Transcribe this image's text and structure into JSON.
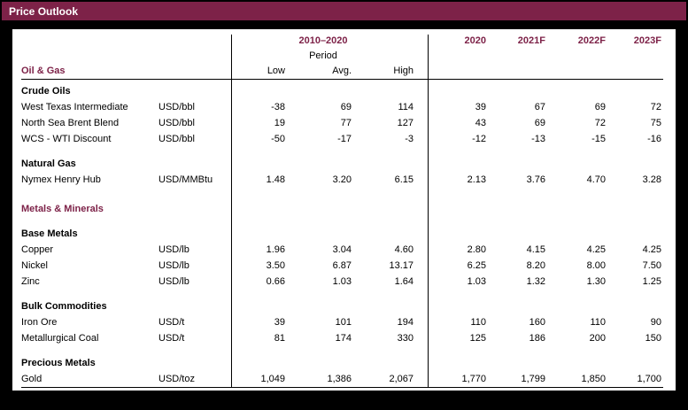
{
  "title_bar": {
    "title": "Price Outlook"
  },
  "colors": {
    "maroon": "#7d2248",
    "text": "#000000",
    "background": "#ffffff",
    "frame": "#000000"
  },
  "table": {
    "header": {
      "period_group": "2010–2020",
      "period_label": "Period",
      "col_low": "Low",
      "col_avg": "Avg.",
      "col_high": "High",
      "years": [
        "2020",
        "2021F",
        "2022F",
        "2023F"
      ],
      "first_section": "Oil & Gas"
    },
    "rows": [
      {
        "type": "section",
        "label": "Crude Oils"
      },
      {
        "type": "data",
        "label": "West Texas Intermediate",
        "unit": "USD/bbl",
        "values": [
          "-38",
          "69",
          "114",
          "39",
          "67",
          "69",
          "72"
        ]
      },
      {
        "type": "data",
        "label": "North Sea Brent Blend",
        "unit": "USD/bbl",
        "values": [
          "19",
          "77",
          "127",
          "43",
          "69",
          "72",
          "75"
        ]
      },
      {
        "type": "data",
        "label": "WCS - WTI Discount",
        "unit": "USD/bbl",
        "values": [
          "-50",
          "-17",
          "-3",
          "-12",
          "-13",
          "-15",
          "-16"
        ]
      },
      {
        "type": "section",
        "label": "Natural Gas"
      },
      {
        "type": "data",
        "label": "Nymex Henry Hub",
        "unit": "USD/MMBtu",
        "values": [
          "1.48",
          "3.20",
          "6.15",
          "2.13",
          "3.76",
          "4.70",
          "3.28"
        ]
      },
      {
        "type": "section-major",
        "label": "Metals & Minerals"
      },
      {
        "type": "section",
        "label": "Base Metals"
      },
      {
        "type": "data",
        "label": "Copper",
        "unit": "USD/lb",
        "values": [
          "1.96",
          "3.04",
          "4.60",
          "2.80",
          "4.15",
          "4.25",
          "4.25"
        ]
      },
      {
        "type": "data",
        "label": "Nickel",
        "unit": "USD/lb",
        "values": [
          "3.50",
          "6.87",
          "13.17",
          "6.25",
          "8.20",
          "8.00",
          "7.50"
        ]
      },
      {
        "type": "data",
        "label": "Zinc",
        "unit": "USD/lb",
        "values": [
          "0.66",
          "1.03",
          "1.64",
          "1.03",
          "1.32",
          "1.30",
          "1.25"
        ]
      },
      {
        "type": "section",
        "label": "Bulk Commodities"
      },
      {
        "type": "data",
        "label": "Iron Ore",
        "unit": "USD/t",
        "values": [
          "39",
          "101",
          "194",
          "110",
          "160",
          "110",
          "90"
        ]
      },
      {
        "type": "data",
        "label": "Metallurgical Coal",
        "unit": "USD/t",
        "values": [
          "81",
          "174",
          "330",
          "125",
          "186",
          "200",
          "150"
        ]
      },
      {
        "type": "section",
        "label": "Precious Metals"
      },
      {
        "type": "data",
        "label": "Gold",
        "unit": "USD/toz",
        "values": [
          "1,049",
          "1,386",
          "2,067",
          "1,770",
          "1,799",
          "1,850",
          "1,700"
        ]
      }
    ]
  }
}
